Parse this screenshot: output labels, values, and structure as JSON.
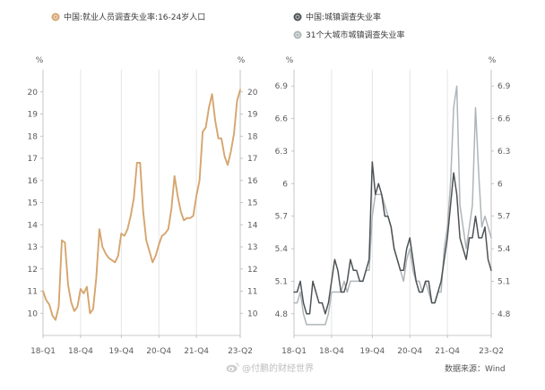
{
  "chart_data": [
    {
      "type": "line",
      "legend": "top",
      "grid": {
        "x": true,
        "y": false
      },
      "x": [
        "2018-01",
        "2018-02",
        "2018-03",
        "2018-04",
        "2018-05",
        "2018-06",
        "2018-07",
        "2018-08",
        "2018-09",
        "2018-10",
        "2018-11",
        "2018-12",
        "2019-01",
        "2019-02",
        "2019-03",
        "2019-04",
        "2019-05",
        "2019-06",
        "2019-07",
        "2019-08",
        "2019-09",
        "2019-10",
        "2019-11",
        "2019-12",
        "2020-01",
        "2020-02",
        "2020-03",
        "2020-04",
        "2020-05",
        "2020-06",
        "2020-07",
        "2020-08",
        "2020-09",
        "2020-10",
        "2020-11",
        "2020-12",
        "2021-01",
        "2021-02",
        "2021-03",
        "2021-04",
        "2021-05",
        "2021-06",
        "2021-07",
        "2021-08",
        "2021-09",
        "2021-10",
        "2021-11",
        "2021-12",
        "2022-01",
        "2022-02",
        "2022-03",
        "2022-04",
        "2022-05",
        "2022-06",
        "2022-07",
        "2022-08",
        "2022-09",
        "2022-10",
        "2022-11",
        "2022-12",
        "2023-01",
        "2023-02",
        "2023-03",
        "2023-04"
      ],
      "xticks": [
        {
          "label": "18-Q1",
          "at": "2018-01"
        },
        {
          "label": "18-Q4",
          "at": "2019-01"
        },
        {
          "label": "19-Q4",
          "at": "2020-02"
        },
        {
          "label": "20-Q4",
          "at": "2021-02"
        },
        {
          "label": "21-Q4",
          "at": "2022-02"
        },
        {
          "label": "23-Q2",
          "at": "2023-04"
        }
      ],
      "yticks": [
        10,
        11,
        12,
        13,
        14,
        15,
        16,
        17,
        18,
        19,
        20
      ],
      "ylim": [
        9,
        21
      ],
      "yunit": "%",
      "series": [
        {
          "name": "中国:就业人员调查失业率:16-24岁人口",
          "color": "#d6a56e",
          "values": [
            11.0,
            10.6,
            10.4,
            9.9,
            9.7,
            10.3,
            13.3,
            13.2,
            11.3,
            10.5,
            10.1,
            10.3,
            11.1,
            10.9,
            11.2,
            10.0,
            10.2,
            11.6,
            13.8,
            13.0,
            12.7,
            12.5,
            12.4,
            12.3,
            12.6,
            13.6,
            13.5,
            13.8,
            14.4,
            15.2,
            16.8,
            16.8,
            14.6,
            13.3,
            12.8,
            12.3,
            12.6,
            13.1,
            13.5,
            13.6,
            13.8,
            14.7,
            16.2,
            15.3,
            14.6,
            14.2,
            14.3,
            14.3,
            14.4,
            15.3,
            16.0,
            18.2,
            18.4,
            19.3,
            19.9,
            18.7,
            17.9,
            17.9,
            17.1,
            16.7,
            17.3,
            18.1,
            19.6,
            20.1
          ]
        }
      ]
    },
    {
      "type": "line",
      "legend": "top",
      "grid": {
        "x": true,
        "y": false
      },
      "x": [
        "2018-01",
        "2018-02",
        "2018-03",
        "2018-04",
        "2018-05",
        "2018-06",
        "2018-07",
        "2018-08",
        "2018-09",
        "2018-10",
        "2018-11",
        "2018-12",
        "2019-01",
        "2019-02",
        "2019-03",
        "2019-04",
        "2019-05",
        "2019-06",
        "2019-07",
        "2019-08",
        "2019-09",
        "2019-10",
        "2019-11",
        "2019-12",
        "2020-01",
        "2020-02",
        "2020-03",
        "2020-04",
        "2020-05",
        "2020-06",
        "2020-07",
        "2020-08",
        "2020-09",
        "2020-10",
        "2020-11",
        "2020-12",
        "2021-01",
        "2021-02",
        "2021-03",
        "2021-04",
        "2021-05",
        "2021-06",
        "2021-07",
        "2021-08",
        "2021-09",
        "2021-10",
        "2021-11",
        "2021-12",
        "2022-01",
        "2022-02",
        "2022-03",
        "2022-04",
        "2022-05",
        "2022-06",
        "2022-07",
        "2022-08",
        "2022-09",
        "2022-10",
        "2022-11",
        "2022-12",
        "2023-01",
        "2023-02",
        "2023-03",
        "2023-04"
      ],
      "xticks": [
        {
          "label": "18-Q1",
          "at": "2018-01"
        },
        {
          "label": "18-Q4",
          "at": "2019-01"
        },
        {
          "label": "19-Q4",
          "at": "2020-02"
        },
        {
          "label": "20-Q4",
          "at": "2021-02"
        },
        {
          "label": "21-Q4",
          "at": "2022-02"
        },
        {
          "label": "23-Q2",
          "at": "2023-04"
        }
      ],
      "yticks": [
        4.8,
        5.1,
        5.4,
        5.7,
        6,
        6.3,
        6.6,
        6.9
      ],
      "ylim": [
        4.6,
        7.05
      ],
      "yunit": "%",
      "series": [
        {
          "name": "中国:城镇调查失业率",
          "color": "#4d5356",
          "values": [
            5.0,
            5.0,
            5.1,
            4.9,
            4.8,
            4.8,
            5.1,
            5.0,
            4.9,
            4.9,
            4.8,
            4.9,
            5.1,
            5.3,
            5.2,
            5.0,
            5.0,
            5.1,
            5.3,
            5.2,
            5.2,
            5.1,
            5.1,
            5.2,
            5.3,
            6.2,
            5.9,
            6.0,
            5.9,
            5.7,
            5.7,
            5.6,
            5.4,
            5.3,
            5.2,
            5.2,
            5.4,
            5.5,
            5.3,
            5.1,
            5.0,
            5.0,
            5.1,
            5.1,
            4.9,
            4.9,
            5.0,
            5.1,
            5.3,
            5.5,
            5.8,
            6.1,
            5.9,
            5.5,
            5.4,
            5.3,
            5.5,
            5.5,
            5.7,
            5.5,
            5.5,
            5.6,
            5.3,
            5.2
          ]
        },
        {
          "name": "31个大城市城镇调查失业率",
          "color": "#aeb5b8",
          "values": [
            4.9,
            4.9,
            5.0,
            4.8,
            4.7,
            4.7,
            4.7,
            4.7,
            4.7,
            4.7,
            4.7,
            4.8,
            5.0,
            5.0,
            5.0,
            5.0,
            5.1,
            5.0,
            5.1,
            5.1,
            5.1,
            5.1,
            5.1,
            5.2,
            5.2,
            5.7,
            5.9,
            5.9,
            5.9,
            5.8,
            5.7,
            5.6,
            5.4,
            5.3,
            5.2,
            5.1,
            5.3,
            5.4,
            5.2,
            5.1,
            5.1,
            5.0,
            5.1,
            5.0,
            4.9,
            4.9,
            5.0,
            5.0,
            5.4,
            5.6,
            6.0,
            6.7,
            6.9,
            5.8,
            5.6,
            5.4,
            5.6,
            5.8,
            6.7,
            6.1,
            5.6,
            5.7,
            5.6,
            5.5
          ]
        }
      ]
    }
  ],
  "watermark": "@付鹏的财经世界",
  "source": "数据来源：Wind"
}
